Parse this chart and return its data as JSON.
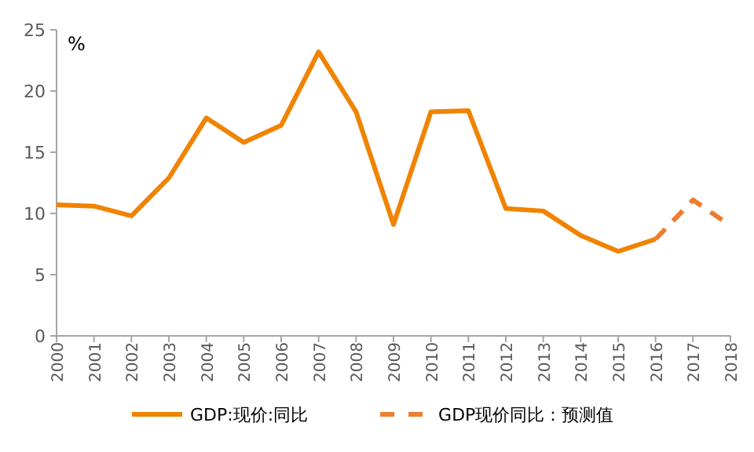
{
  "chart_data": {
    "type": "line",
    "ylabel": "%",
    "categories": [
      "2000",
      "2001",
      "2002",
      "2003",
      "2004",
      "2005",
      "2006",
      "2007",
      "2008",
      "2009",
      "2010",
      "2011",
      "2012",
      "2013",
      "2014",
      "2015",
      "2016",
      "2017",
      "2018"
    ],
    "series": [
      {
        "name": "GDP:现价:同比",
        "color": "#f08300",
        "line_style": "solid",
        "values": [
          10.7,
          10.6,
          9.8,
          12.9,
          17.8,
          15.8,
          17.2,
          23.2,
          18.3,
          9.1,
          18.3,
          18.4,
          10.4,
          10.2,
          8.2,
          6.9,
          7.9,
          null,
          null
        ]
      },
      {
        "name": "GDP现价同比：预测值",
        "color": "#ed7d31",
        "line_style": "dashed",
        "values": [
          null,
          null,
          null,
          null,
          null,
          null,
          null,
          null,
          null,
          null,
          null,
          null,
          null,
          null,
          null,
          null,
          7.9,
          11.1,
          9.0
        ]
      }
    ],
    "ylim": [
      0,
      25
    ],
    "yticks": [
      0,
      5,
      10,
      15,
      20,
      25
    ],
    "grid": false,
    "legend": "bottom"
  }
}
